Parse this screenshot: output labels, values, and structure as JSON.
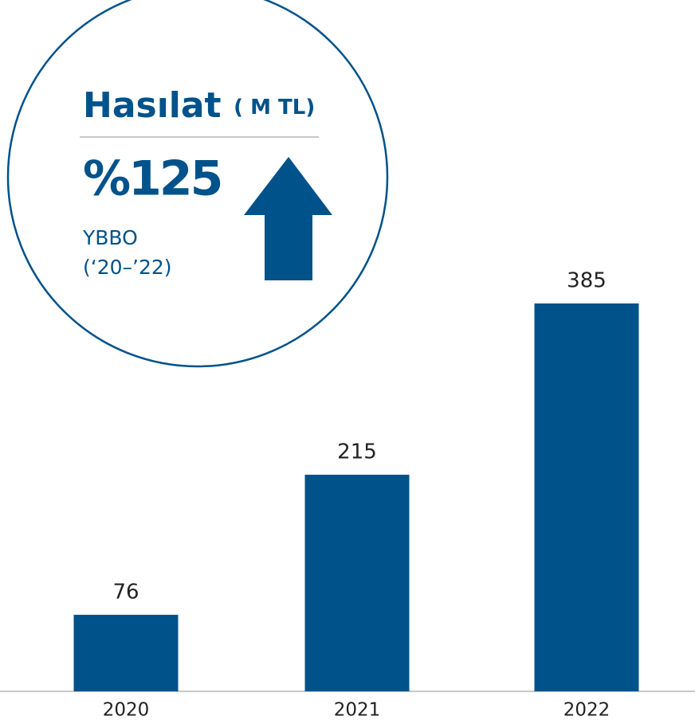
{
  "chart_data": {
    "type": "bar",
    "title": "Hasılat",
    "unit": "( M TL)",
    "annotation": {
      "value": "%125",
      "label": "YBBO",
      "period": "(‘20–’22)"
    },
    "categories": [
      "2020",
      "2021",
      "2022"
    ],
    "values": [
      76,
      215,
      385
    ],
    "color": "#00528a"
  }
}
